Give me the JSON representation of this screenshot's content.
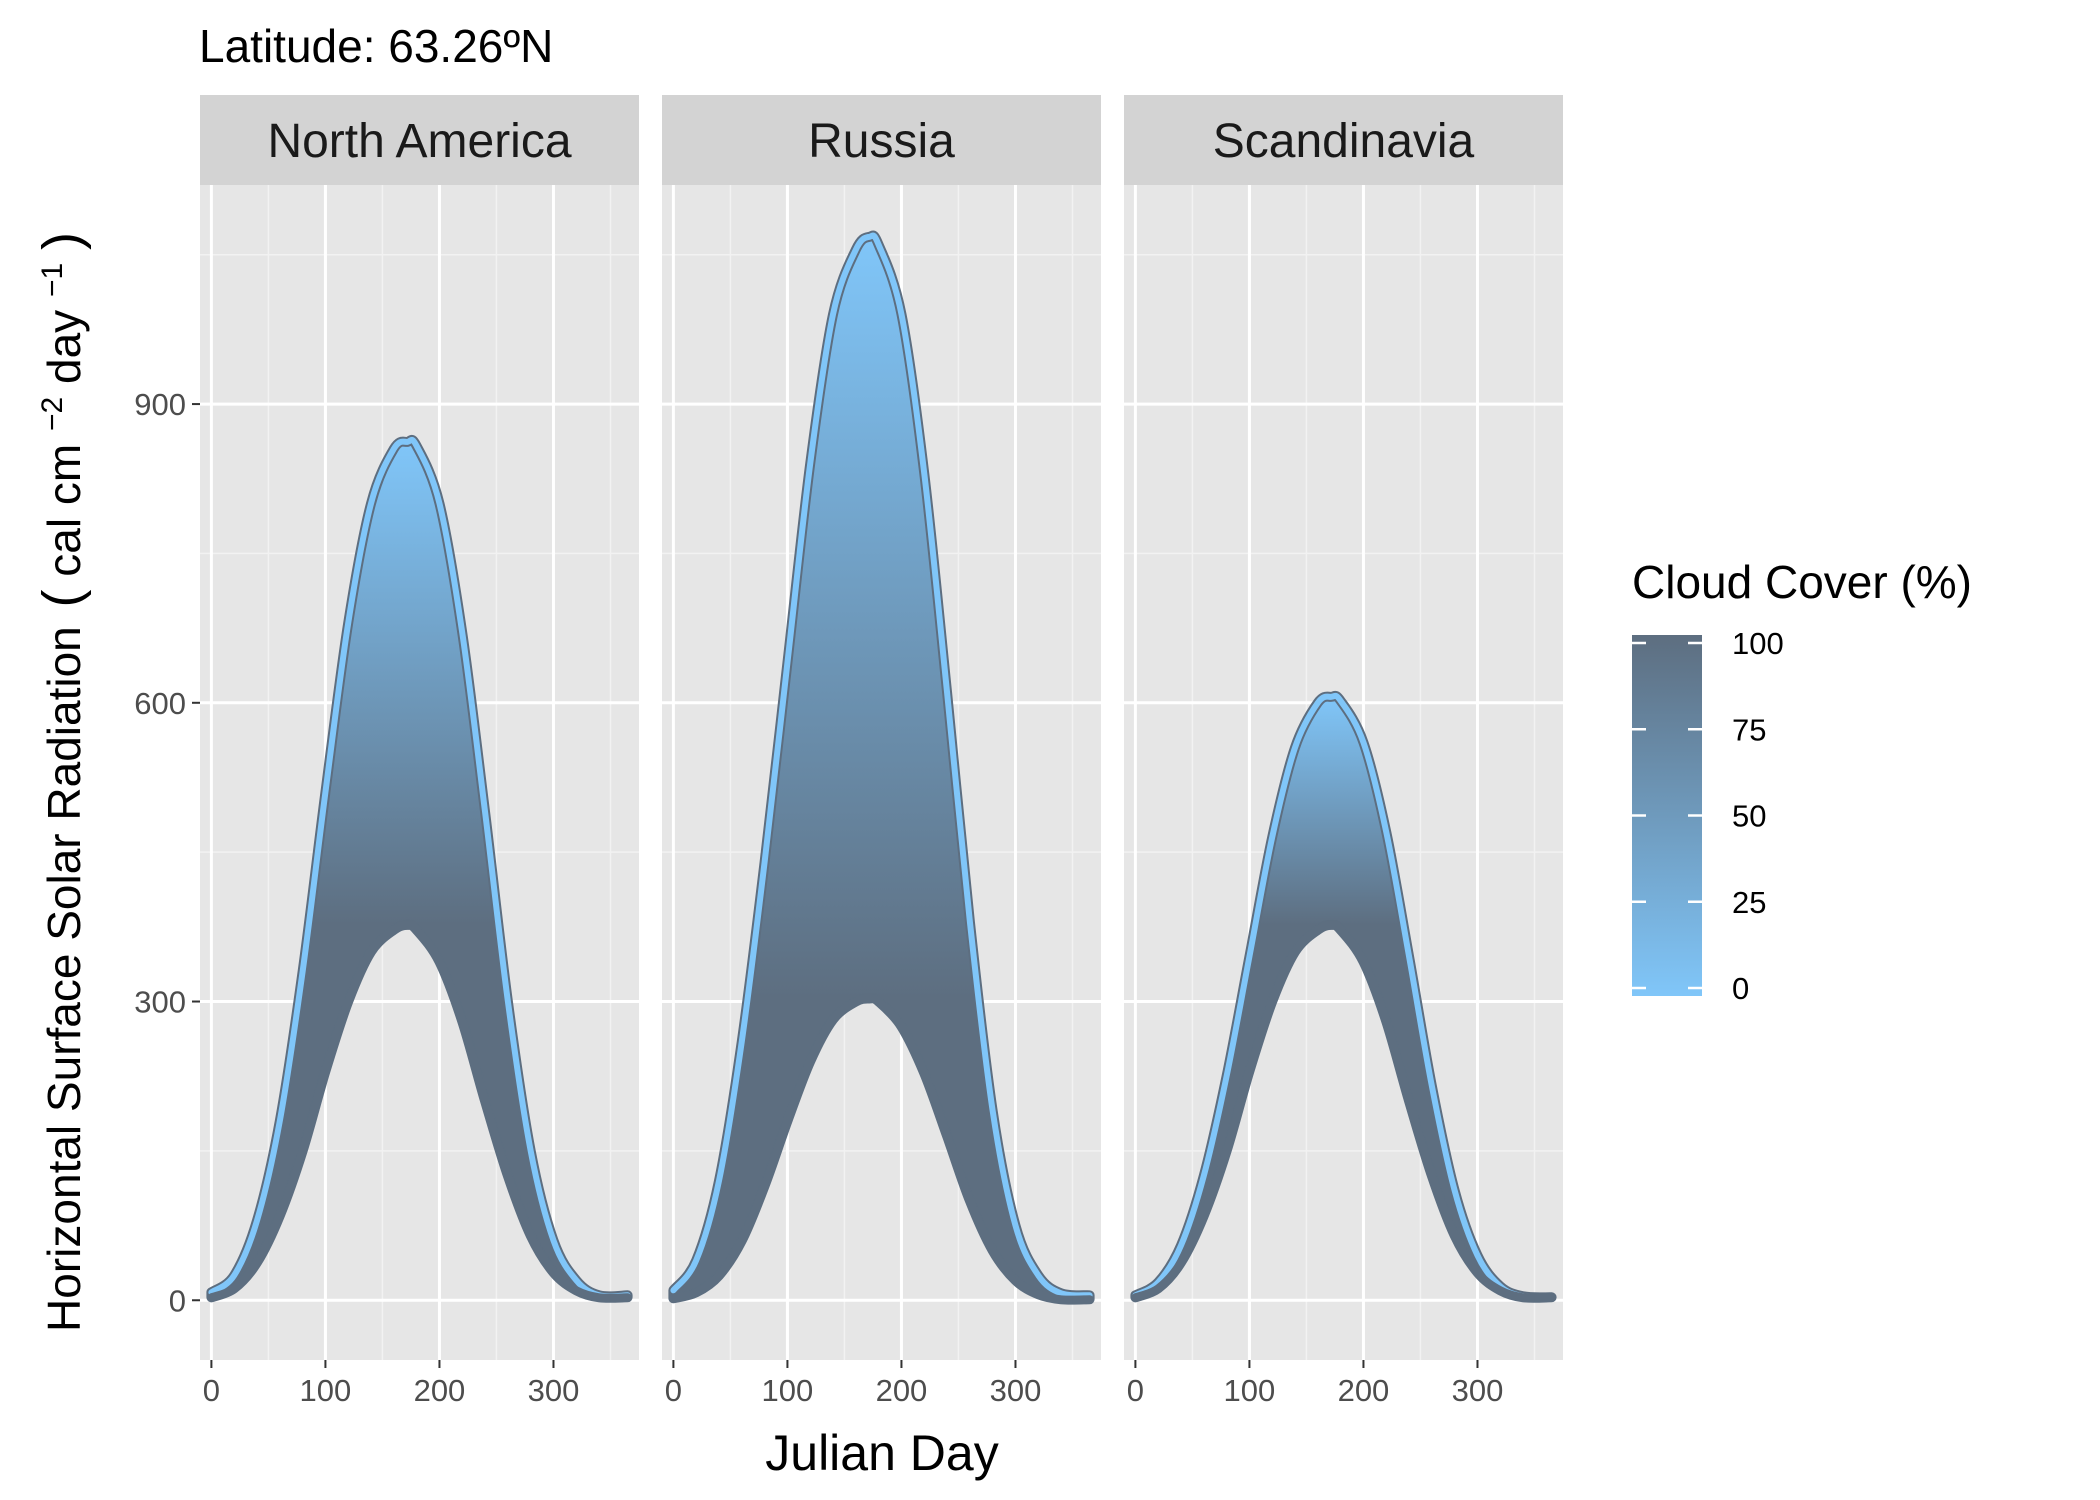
{
  "chart_data": {
    "type": "area",
    "title": "Latitude: 63.26ºN",
    "xlabel": "Julian Day",
    "ylabel": {
      "main": "Horizontal Surface Solar Radiation",
      "units_prefix": "cal cm",
      "units_exp1": "−2",
      "units_mid": " day",
      "units_exp2": "−1"
    },
    "xlim": [
      -10,
      375
    ],
    "ylim": [
      -60,
      1120
    ],
    "x_ticks": [
      0,
      100,
      200,
      300
    ],
    "y_ticks": [
      0,
      300,
      600,
      900
    ],
    "grid": true,
    "peak_day": 172,
    "x": [
      0,
      20,
      40,
      60,
      80,
      100,
      120,
      140,
      160,
      172,
      180,
      200,
      220,
      240,
      260,
      280,
      300,
      320,
      340,
      365
    ],
    "panels": [
      {
        "name": "North America",
        "series": [
          {
            "name": "0",
            "values": [
              8,
              25,
              80,
              180,
              330,
              510,
              680,
              800,
              855,
              862,
              858,
              800,
              670,
              490,
              300,
              150,
              60,
              20,
              5,
              5
            ]
          },
          {
            "name": "100",
            "values": [
              3,
              12,
              38,
              85,
              150,
              230,
              300,
              350,
              372,
              377,
              372,
              340,
              280,
              200,
              125,
              65,
              28,
              10,
              3,
              3
            ]
          }
        ]
      },
      {
        "name": "Russia",
        "series": [
          {
            "name": "0",
            "values": [
              10,
              40,
              120,
              260,
              440,
              640,
              840,
              990,
              1055,
              1068,
              1060,
              990,
              830,
              610,
              380,
              190,
              75,
              25,
              7,
              5
            ]
          },
          {
            "name": "100",
            "values": [
              2,
              8,
              25,
              60,
              115,
              180,
              240,
              282,
              300,
              303,
              300,
              275,
              228,
              165,
              100,
              50,
              20,
              6,
              1,
              1
            ]
          }
        ]
      },
      {
        "name": "Scandinavia",
        "series": [
          {
            "name": "0",
            "values": [
              5,
              18,
              55,
              125,
              225,
              345,
              465,
              555,
              600,
              606,
              602,
              560,
              470,
              345,
              215,
              110,
              45,
              14,
              4,
              3
            ]
          },
          {
            "name": "100",
            "values": [
              3,
              12,
              38,
              85,
              150,
              230,
              300,
              350,
              372,
              377,
              372,
              340,
              280,
              200,
              125,
              65,
              28,
              10,
              3,
              3
            ]
          }
        ]
      }
    ],
    "legend": {
      "title": "Cloud Cover (%)",
      "position": "right",
      "ticks": [
        0,
        25,
        50,
        75,
        100
      ],
      "color_low": "#80c6f9",
      "color_high": "#5d6e80"
    },
    "colors": {
      "panel_bg": "#e6e6e6",
      "strip_bg": "#d3d3d3",
      "grid_major": "#ffffff",
      "grid_minor": "#f2f2f2"
    }
  }
}
